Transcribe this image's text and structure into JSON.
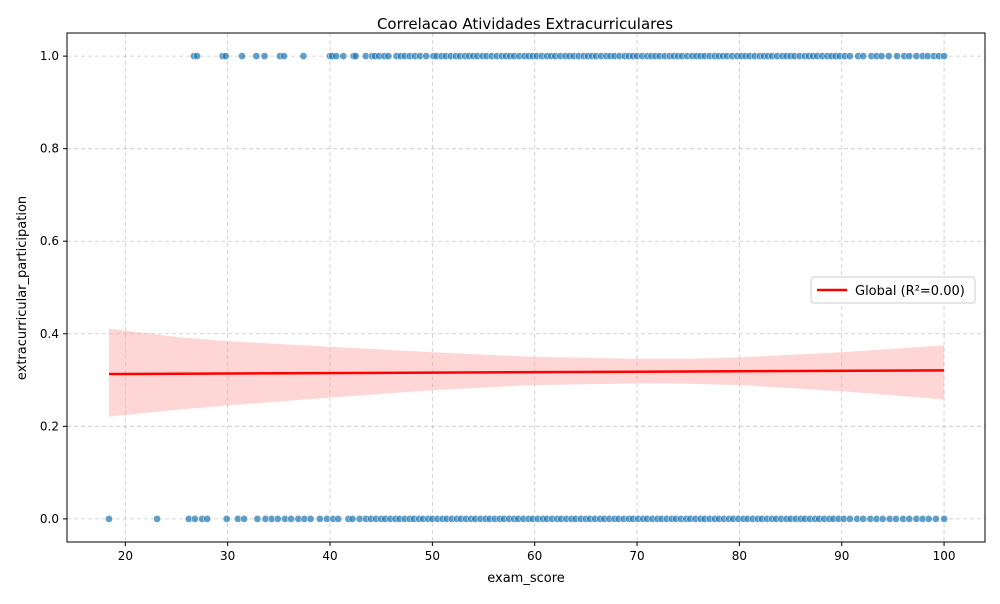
{
  "chart_data": {
    "type": "scatter",
    "title": "Correlacao Atividades Extracurriculares",
    "xlabel": "exam_score",
    "ylabel": "extracurricular_participation",
    "xlim": [
      14.3,
      104.0
    ],
    "ylim": [
      -0.05,
      1.05
    ],
    "x_ticks": [
      20,
      30,
      40,
      50,
      60,
      70,
      80,
      90,
      100
    ],
    "y_ticks": [
      0.0,
      0.2,
      0.4,
      0.6,
      0.8,
      1.0
    ],
    "x_tick_labels": [
      "20",
      "30",
      "40",
      "50",
      "60",
      "70",
      "80",
      "90",
      "100"
    ],
    "y_tick_labels": [
      "0.0",
      "0.2",
      "0.4",
      "0.6",
      "0.8",
      "1.0"
    ],
    "grid": true,
    "grid_style": "dashed",
    "legend_position": "center-right",
    "colors": {
      "points": "#1f77b4",
      "regression_line": "#ff0000",
      "confidence_band": "#ff9999"
    },
    "series": [
      {
        "kind": "points",
        "y": 1.0,
        "x": [
          26.7,
          27.0,
          29.5,
          29.8,
          31.4,
          32.8,
          33.6,
          35.1,
          35.5,
          37.4,
          40.0,
          40.2,
          40.6,
          41.3,
          42.3,
          42.5,
          43.5,
          44.1,
          44.4,
          44.8,
          45.3,
          45.7,
          46.5,
          46.9,
          47.3,
          47.8,
          48.3,
          48.8,
          49.4,
          50.1,
          50.4,
          50.9,
          51.3,
          51.8,
          52.3,
          52.7,
          53.2,
          53.6,
          54.0,
          54.4,
          54.9,
          55.3,
          55.8,
          56.3,
          56.8,
          57.2,
          57.6,
          58.0,
          58.5,
          59.0,
          59.4,
          59.8,
          60.2,
          60.7,
          61.2,
          61.6,
          62.0,
          62.5,
          63.0,
          63.4,
          63.8,
          64.3,
          64.8,
          65.2,
          65.6,
          66.0,
          66.5,
          67.0,
          67.4,
          67.8,
          68.3,
          68.8,
          69.2,
          69.6,
          70.0,
          70.5,
          71.0,
          71.4,
          71.8,
          72.2,
          72.7,
          73.2,
          73.6,
          74.0,
          74.4,
          74.9,
          75.4,
          75.8,
          76.2,
          76.6,
          77.1,
          77.6,
          78.0,
          78.4,
          78.8,
          79.3,
          79.8,
          80.2,
          80.6,
          81.0,
          81.5,
          82.0,
          82.4,
          82.8,
          83.2,
          83.7,
          84.2,
          84.6,
          85.0,
          85.4,
          85.9,
          86.4,
          86.8,
          87.2,
          87.6,
          88.1,
          88.6,
          89.0,
          89.4,
          89.8,
          90.3,
          90.8,
          91.6,
          92.1,
          92.9,
          93.4,
          93.9,
          94.6,
          95.4,
          96.1,
          96.6,
          97.3,
          97.9,
          98.4,
          99.0,
          99.5,
          100.0
        ]
      },
      {
        "kind": "points",
        "y": 0.0,
        "x": [
          18.4,
          23.1,
          26.2,
          26.8,
          27.5,
          28.0,
          29.9,
          31.0,
          31.6,
          32.9,
          33.7,
          34.3,
          34.9,
          35.6,
          36.2,
          36.9,
          37.5,
          38.1,
          39.0,
          39.7,
          40.3,
          40.8,
          41.8,
          42.2,
          42.9,
          43.5,
          44.0,
          44.5,
          45.0,
          45.4,
          45.9,
          46.4,
          46.8,
          47.3,
          47.8,
          48.2,
          48.7,
          49.1,
          49.6,
          50.0,
          50.5,
          51.0,
          51.4,
          51.9,
          52.4,
          52.8,
          53.3,
          53.8,
          54.2,
          54.7,
          55.2,
          55.6,
          56.1,
          56.6,
          57.0,
          57.5,
          58.0,
          58.4,
          58.9,
          59.4,
          59.8,
          60.3,
          60.8,
          61.2,
          61.7,
          62.2,
          62.6,
          63.1,
          63.6,
          64.0,
          64.5,
          65.0,
          65.4,
          65.9,
          66.4,
          66.8,
          67.3,
          67.8,
          68.2,
          68.7,
          69.2,
          69.6,
          70.1,
          70.6,
          71.0,
          71.5,
          72.0,
          72.4,
          72.9,
          73.4,
          73.8,
          74.3,
          74.8,
          75.2,
          75.7,
          76.2,
          76.6,
          77.1,
          77.6,
          78.0,
          78.5,
          79.0,
          79.4,
          79.9,
          80.4,
          80.8,
          81.3,
          81.8,
          82.2,
          82.7,
          83.2,
          83.6,
          84.1,
          84.6,
          85.0,
          85.5,
          86.0,
          86.4,
          86.9,
          87.4,
          87.8,
          88.3,
          88.8,
          89.2,
          89.7,
          90.2,
          90.8,
          91.5,
          92.1,
          92.8,
          93.4,
          94.0,
          94.7,
          95.3,
          96.0,
          96.6,
          97.3,
          97.9,
          98.5,
          99.2,
          100.0
        ]
      },
      {
        "kind": "regression",
        "name": "Global (R²=0.00)",
        "x": [
          18.4,
          100.0
        ],
        "y": [
          0.313,
          0.321
        ],
        "band_x": [
          18.4,
          25,
          30,
          40,
          50,
          60,
          70,
          75,
          80,
          90,
          100
        ],
        "band_lower": [
          0.221,
          0.236,
          0.245,
          0.262,
          0.278,
          0.289,
          0.293,
          0.292,
          0.289,
          0.276,
          0.258
        ],
        "band_upper": [
          0.411,
          0.393,
          0.384,
          0.372,
          0.36,
          0.35,
          0.346,
          0.346,
          0.349,
          0.36,
          0.375
        ]
      }
    ]
  }
}
